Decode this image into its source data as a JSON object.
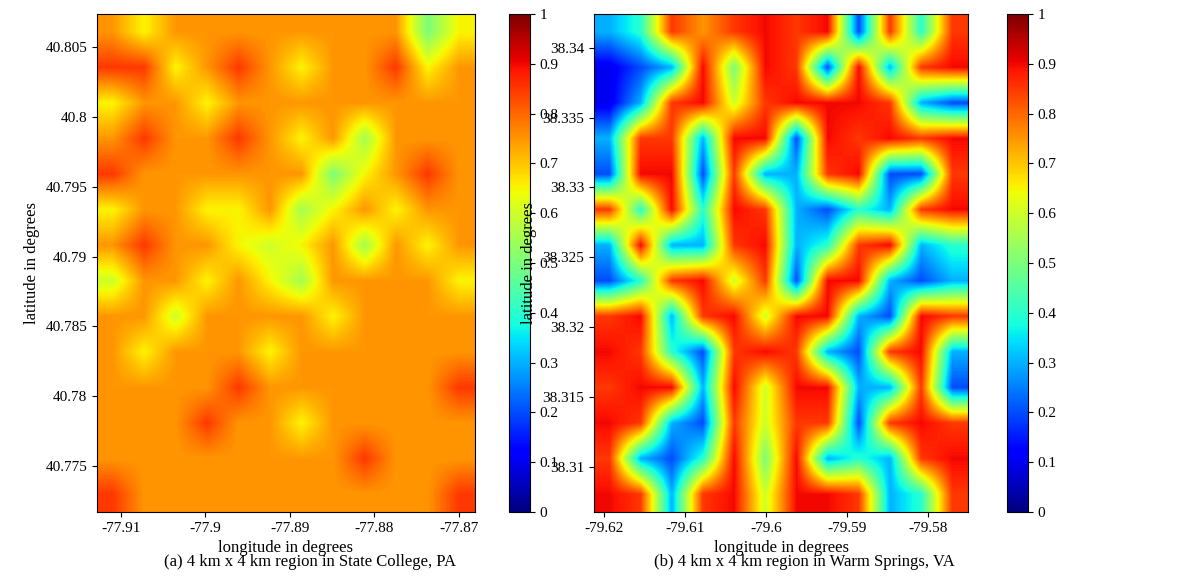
{
  "chart_data": [
    {
      "type": "heatmap",
      "title": "(a) 4 km x 4 km region in State College, PA",
      "x_label": "longitude in degrees",
      "y_label": "latitude in degrees",
      "xlim": [
        -77.9128,
        -77.8681
      ],
      "ylim": [
        40.7717,
        40.8074
      ],
      "xticks": [
        -77.91,
        -77.9,
        -77.89,
        -77.88,
        -77.87
      ],
      "yticks": [
        40.775,
        40.78,
        40.785,
        40.79,
        40.795,
        40.8,
        40.805
      ],
      "cells": [
        [
          0.75,
          0.65,
          0.75,
          0.75,
          0.75,
          0.75,
          0.75,
          0.75,
          0.75,
          0.75,
          0.5,
          0.65
        ],
        [
          0.85,
          0.85,
          0.65,
          0.75,
          0.85,
          0.75,
          0.65,
          0.75,
          0.75,
          0.85,
          0.65,
          0.75
        ],
        [
          0.65,
          0.75,
          0.75,
          0.65,
          0.75,
          0.75,
          0.75,
          0.75,
          0.75,
          0.75,
          0.75,
          0.75
        ],
        [
          0.75,
          0.85,
          0.75,
          0.75,
          0.85,
          0.75,
          0.65,
          0.75,
          0.55,
          0.75,
          0.75,
          0.75
        ],
        [
          0.85,
          0.75,
          0.75,
          0.75,
          0.75,
          0.75,
          0.75,
          0.5,
          0.65,
          0.75,
          0.85,
          0.75
        ],
        [
          0.65,
          0.75,
          0.75,
          0.65,
          0.65,
          0.75,
          0.55,
          0.65,
          0.75,
          0.65,
          0.75,
          0.75
        ],
        [
          0.75,
          0.85,
          0.75,
          0.75,
          0.65,
          0.6,
          0.65,
          0.75,
          0.55,
          0.75,
          0.65,
          0.75
        ],
        [
          0.6,
          0.75,
          0.75,
          0.65,
          0.75,
          0.65,
          0.55,
          0.75,
          0.75,
          0.75,
          0.75,
          0.65
        ],
        [
          0.75,
          0.75,
          0.6,
          0.75,
          0.75,
          0.75,
          0.75,
          0.65,
          0.75,
          0.75,
          0.75,
          0.75
        ],
        [
          0.75,
          0.65,
          0.75,
          0.75,
          0.75,
          0.65,
          0.75,
          0.75,
          0.75,
          0.75,
          0.75,
          0.75
        ],
        [
          0.75,
          0.75,
          0.75,
          0.75,
          0.85,
          0.75,
          0.75,
          0.75,
          0.75,
          0.75,
          0.75,
          0.85
        ],
        [
          0.75,
          0.75,
          0.75,
          0.85,
          0.75,
          0.75,
          0.65,
          0.75,
          0.75,
          0.75,
          0.75,
          0.75
        ],
        [
          0.75,
          0.75,
          0.75,
          0.75,
          0.75,
          0.75,
          0.75,
          0.75,
          0.85,
          0.75,
          0.75,
          0.75
        ],
        [
          0.85,
          0.75,
          0.75,
          0.75,
          0.75,
          0.75,
          0.75,
          0.75,
          0.75,
          0.75,
          0.75,
          0.85
        ]
      ],
      "colorbar": {
        "range": [
          0,
          1
        ],
        "ticks": [
          0,
          0.1,
          0.2,
          0.3,
          0.4,
          0.5,
          0.6,
          0.7,
          0.8,
          0.9,
          1
        ]
      }
    },
    {
      "type": "heatmap",
      "title": "(b) 4 km x 4 km region in Warm Springs, VA",
      "x_label": "longitude in degrees",
      "y_label": "latitude in degrees",
      "xlim": [
        -79.6212,
        -79.5751
      ],
      "ylim": [
        38.3068,
        38.3424
      ],
      "xticks": [
        -79.62,
        -79.61,
        -79.6,
        -79.59,
        -79.58
      ],
      "yticks": [
        38.31,
        38.315,
        38.32,
        38.325,
        38.33,
        38.335,
        38.34
      ],
      "cells": [
        [
          0.3,
          0.4,
          0.85,
          0.75,
          0.85,
          0.9,
          0.85,
          0.9,
          0.2,
          0.85,
          0.4,
          0.85
        ],
        [
          0.1,
          0.2,
          0.3,
          0.9,
          0.5,
          0.9,
          0.85,
          0.2,
          0.9,
          0.3,
          0.85,
          0.9
        ],
        [
          0.1,
          0.3,
          0.85,
          0.9,
          0.6,
          0.85,
          0.9,
          0.9,
          0.9,
          0.85,
          0.3,
          0.2
        ],
        [
          0.3,
          0.85,
          0.85,
          0.3,
          0.9,
          0.9,
          0.2,
          0.9,
          0.85,
          0.9,
          0.85,
          0.9
        ],
        [
          0.2,
          0.9,
          0.9,
          0.2,
          0.85,
          0.3,
          0.3,
          0.85,
          0.9,
          0.2,
          0.2,
          0.85
        ],
        [
          0.85,
          0.4,
          0.9,
          0.4,
          0.9,
          0.85,
          0.3,
          0.2,
          0.4,
          0.3,
          0.85,
          0.9
        ],
        [
          0.3,
          0.9,
          0.3,
          0.3,
          0.85,
          0.9,
          0.3,
          0.4,
          0.85,
          0.9,
          0.3,
          0.4
        ],
        [
          0.2,
          0.4,
          0.85,
          0.9,
          0.6,
          0.85,
          0.2,
          0.9,
          0.9,
          0.3,
          0.2,
          0.3
        ],
        [
          0.85,
          0.9,
          0.3,
          0.85,
          0.9,
          0.6,
          0.9,
          0.9,
          0.3,
          0.2,
          0.9,
          0.85
        ],
        [
          0.9,
          0.85,
          0.4,
          0.2,
          0.85,
          0.9,
          0.85,
          0.3,
          0.2,
          0.85,
          0.9,
          0.3
        ],
        [
          0.85,
          0.9,
          0.9,
          0.3,
          0.9,
          0.6,
          0.9,
          0.9,
          0.3,
          0.3,
          0.85,
          0.2
        ],
        [
          0.9,
          0.85,
          0.3,
          0.2,
          0.85,
          0.6,
          0.85,
          0.85,
          0.2,
          0.85,
          0.9,
          0.85
        ],
        [
          0.85,
          0.3,
          0.2,
          0.4,
          0.9,
          0.5,
          0.9,
          0.3,
          0.4,
          0.3,
          0.85,
          0.9
        ],
        [
          0.9,
          0.85,
          0.3,
          0.85,
          0.9,
          0.6,
          0.9,
          0.9,
          0.85,
          0.3,
          0.4,
          0.85
        ]
      ],
      "colorbar": {
        "range": [
          0,
          1
        ],
        "ticks": [
          0,
          0.1,
          0.2,
          0.3,
          0.4,
          0.5,
          0.6,
          0.7,
          0.8,
          0.9,
          1
        ]
      }
    }
  ]
}
